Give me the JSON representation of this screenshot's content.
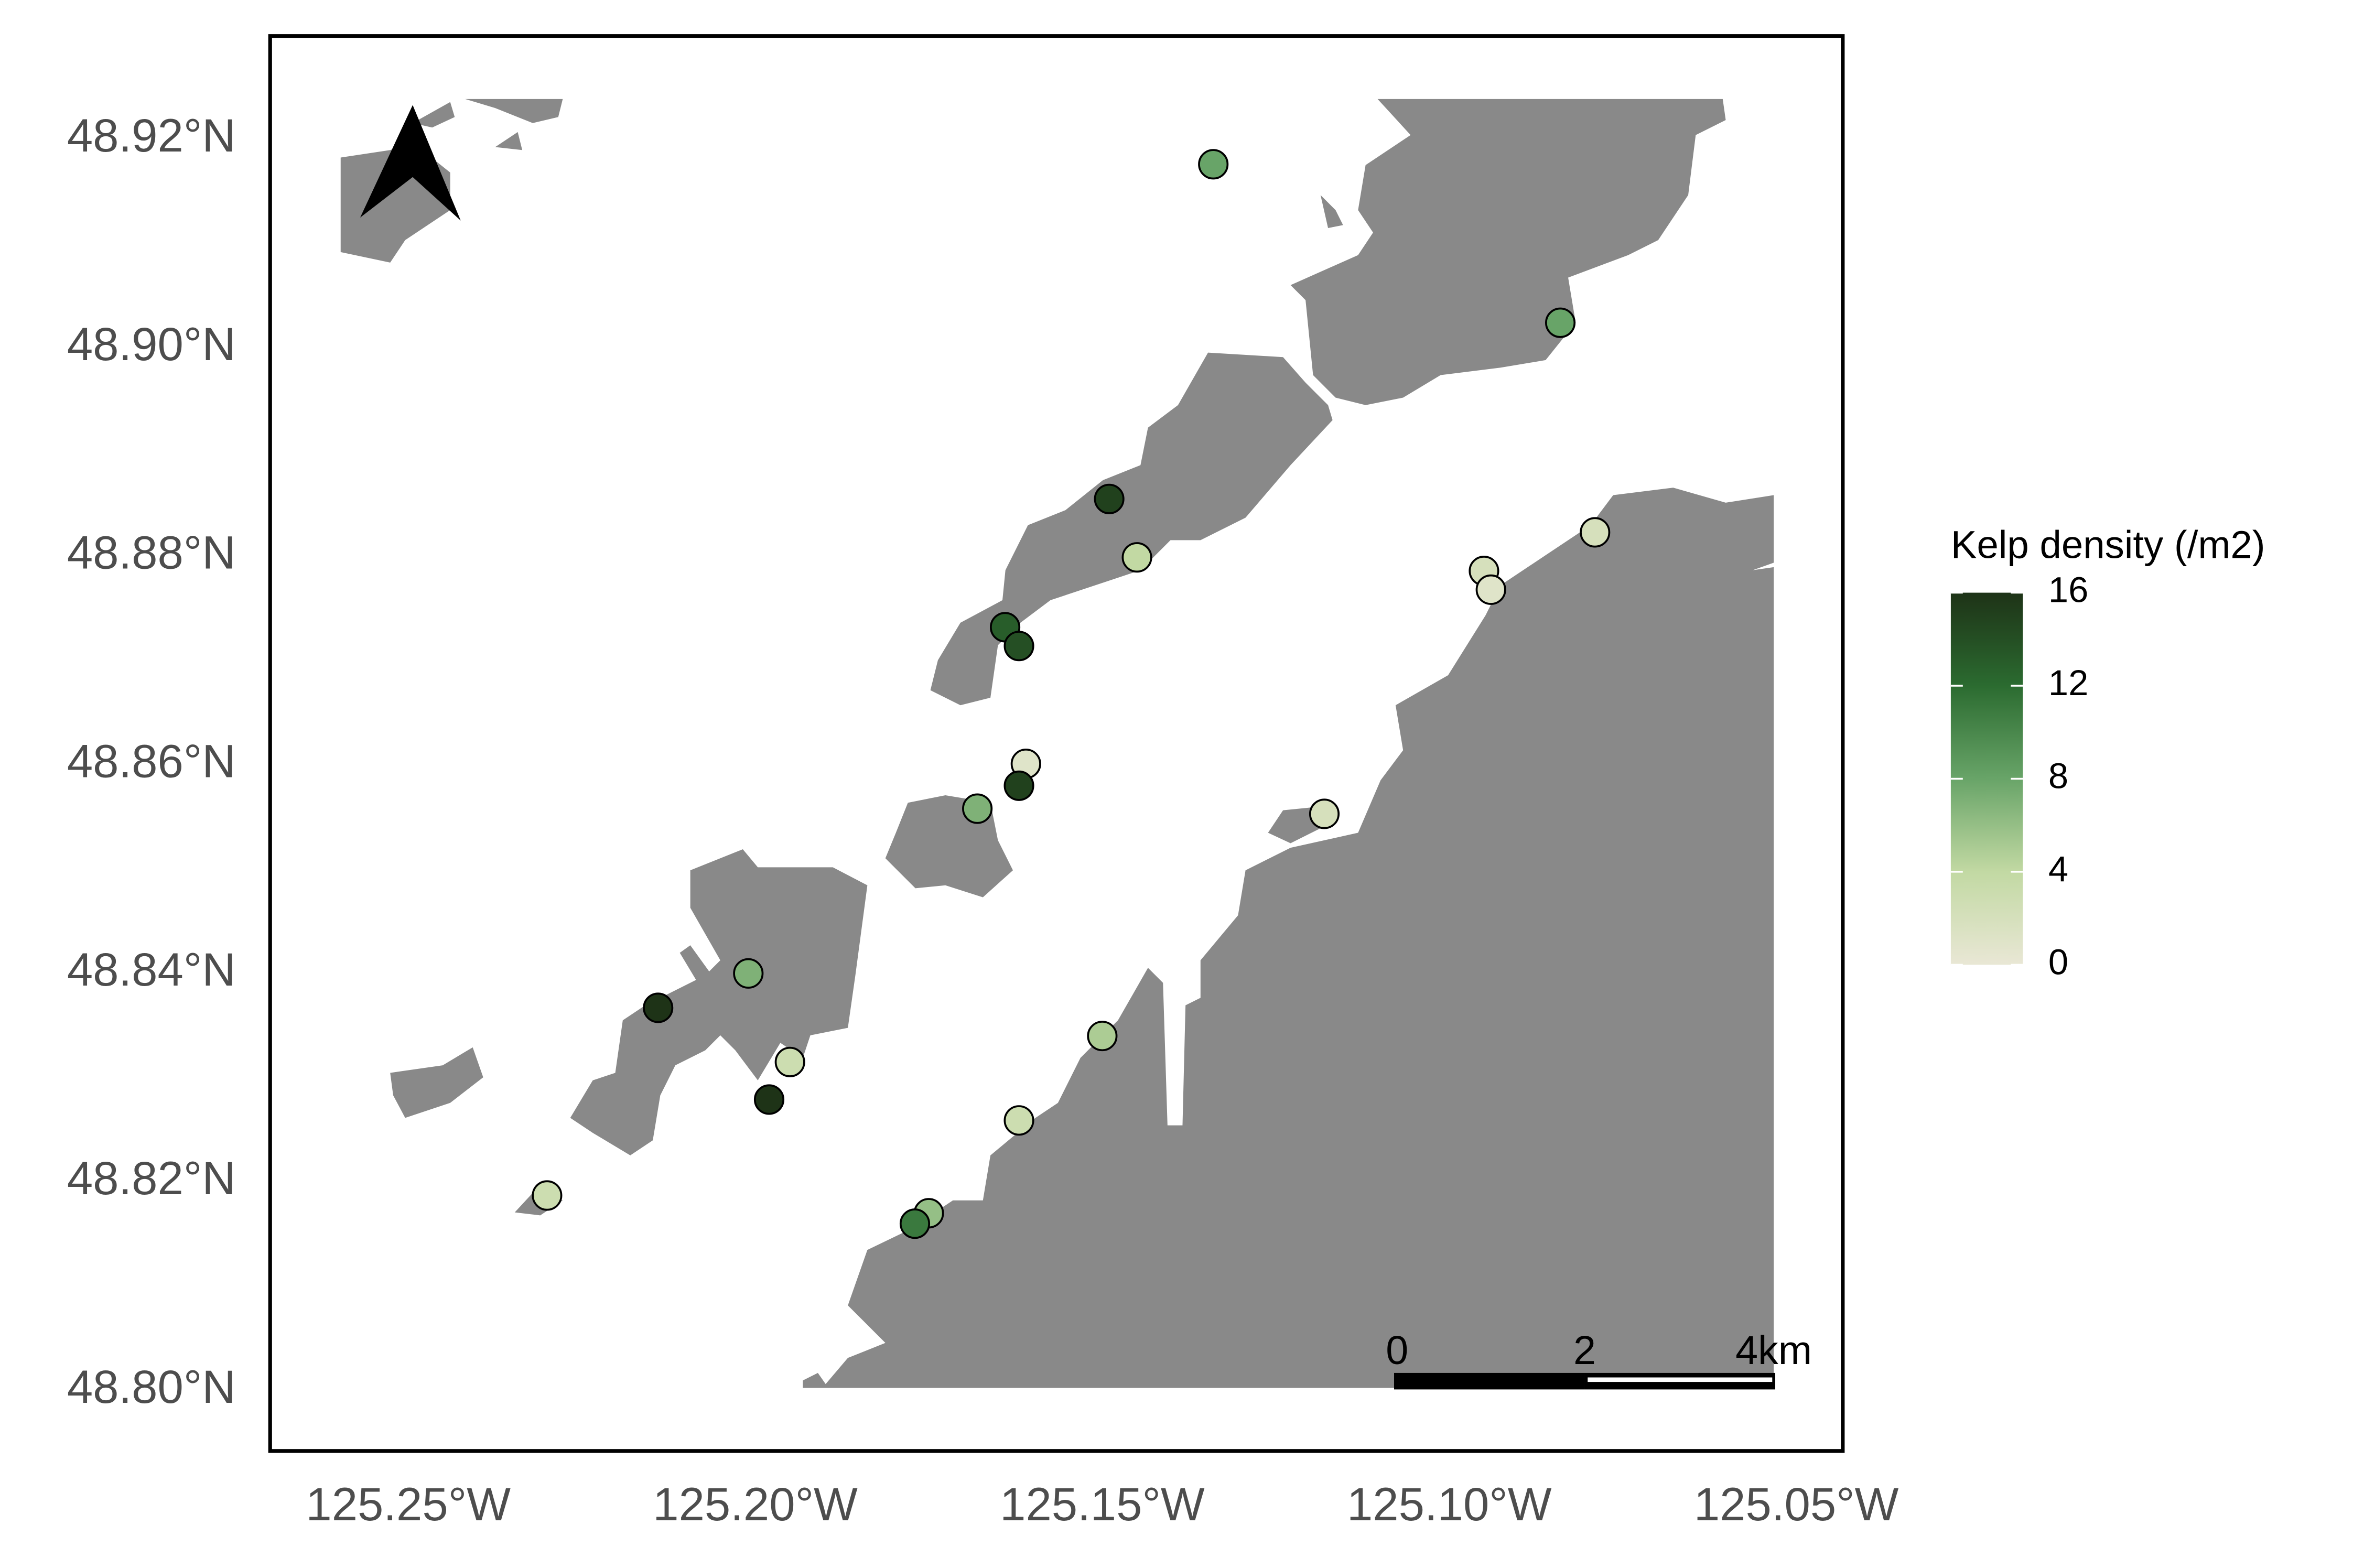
{
  "chart_data": {
    "type": "scatter",
    "x": [
      -125.134,
      -125.084,
      -125.149,
      -125.145,
      -125.164,
      -125.162,
      -125.161,
      -125.162,
      -125.168,
      -125.201,
      -125.214,
      -125.195,
      -125.198,
      -125.23,
      -125.175,
      -125.177,
      -125.162,
      -125.15,
      -125.118,
      -125.095,
      -125.094,
      -125.079
    ],
    "y": [
      48.9176,
      48.9024,
      48.8855,
      48.8799,
      48.8732,
      48.8714,
      48.8601,
      48.858,
      48.8558,
      48.84,
      48.8367,
      48.8315,
      48.8279,
      48.8187,
      48.817,
      48.816,
      48.8259,
      48.834,
      48.8553,
      48.8786,
      48.8768,
      48.8823
    ],
    "values": [
      8,
      8,
      15,
      4,
      13,
      14,
      1,
      15,
      7,
      7,
      16,
      3,
      16,
      3,
      6,
      11,
      3,
      5,
      2,
      2,
      1,
      2
    ],
    "xlim": [
      -125.2699,
      -125.0433
    ],
    "ylim": [
      48.7942,
      48.9299
    ],
    "xticks": [
      {
        "value": -125.25,
        "label": "125.25°W"
      },
      {
        "value": -125.2,
        "label": "125.20°W"
      },
      {
        "value": -125.15,
        "label": "125.15°W"
      },
      {
        "value": -125.1,
        "label": "125.10°W"
      },
      {
        "value": -125.05,
        "label": "125.05°W"
      }
    ],
    "yticks": [
      {
        "value": 48.92,
        "label": "48.92°N"
      },
      {
        "value": 48.9,
        "label": "48.90°N"
      },
      {
        "value": 48.88,
        "label": "48.88°N"
      },
      {
        "value": 48.86,
        "label": "48.86°N"
      },
      {
        "value": 48.84,
        "label": "48.84°N"
      },
      {
        "value": 48.82,
        "label": "48.82°N"
      },
      {
        "value": 48.8,
        "label": "48.80°N"
      }
    ],
    "colorbar": {
      "title": "Kelp density (/m2)",
      "lim": [
        0,
        16
      ],
      "ticks": [
        0,
        4,
        8,
        12,
        16
      ],
      "colorscale": [
        "#e9e7d5",
        "#c2d9a3",
        "#68a468",
        "#2b6b30",
        "#1e3317"
      ]
    },
    "scale_bar": {
      "labels": [
        "0",
        "2",
        "4km"
      ]
    }
  }
}
